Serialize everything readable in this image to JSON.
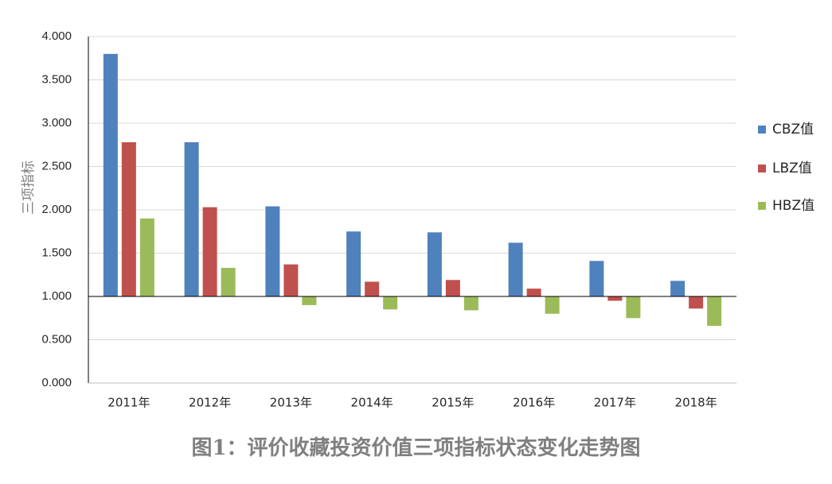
{
  "chart_data": {
    "type": "bar",
    "title": "",
    "xlabel": "",
    "ylabel": "三项指标",
    "ylim": [
      0,
      4
    ],
    "yticks": [
      "0.000",
      "0.500",
      "1.000",
      "1.500",
      "2.000",
      "2.500",
      "3.000",
      "3.500",
      "4.000"
    ],
    "baseline": 1.0,
    "grid": true,
    "legend_position": "right",
    "categories": [
      "2011年",
      "2012年",
      "2013年",
      "2014年",
      "2015年",
      "2016年",
      "2017年",
      "2018年"
    ],
    "series": [
      {
        "name": "CBZ值",
        "color": "#4f81bd",
        "values": [
          3.8,
          2.78,
          2.04,
          1.75,
          1.74,
          1.62,
          1.41,
          1.18
        ]
      },
      {
        "name": "LBZ值",
        "color": "#c0504d",
        "values": [
          2.78,
          2.03,
          1.37,
          1.17,
          1.19,
          1.09,
          0.95,
          0.86
        ]
      },
      {
        "name": "HBZ值",
        "color": "#9bbb59",
        "values": [
          1.9,
          1.33,
          0.9,
          0.85,
          0.84,
          0.8,
          0.75,
          0.66
        ]
      }
    ]
  },
  "caption": "图1：评价收藏投资价值三项指标状态变化走势图"
}
